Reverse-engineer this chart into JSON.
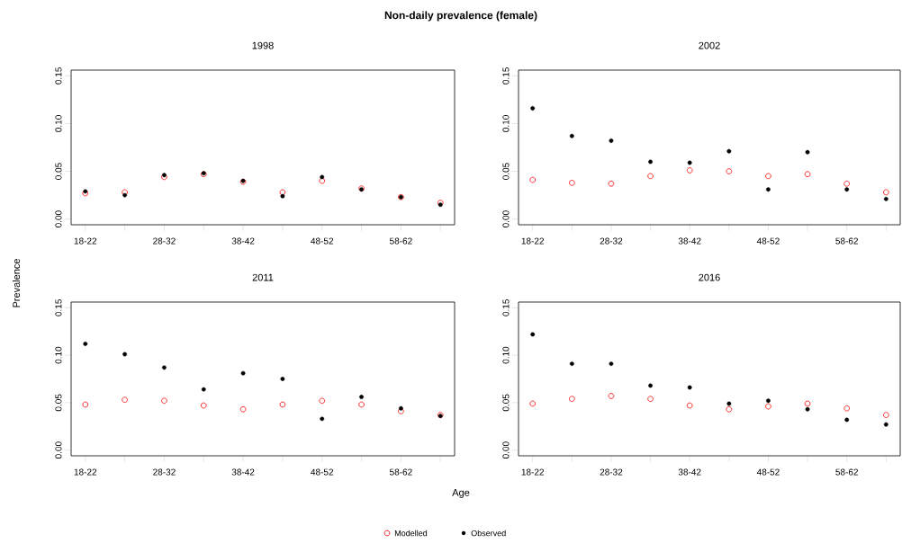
{
  "chart_data": [
    {
      "type": "scatter",
      "title": "1998",
      "ylabel": "Prevalence",
      "legend": "bottom",
      "annotations": [
        "Non-daily prevalence (female)"
      ],
      "categories": [
        "18-22",
        null,
        "28-32",
        null,
        "38-42",
        null,
        "48-52",
        null,
        "58-62",
        null
      ],
      "ylim": [
        -0.006,
        0.156
      ],
      "yticks": [
        {
          "value": 0,
          "label": "0.00"
        },
        {
          "value": 0.05,
          "label": "0.05"
        },
        {
          "value": 0.1,
          "label": "0.10"
        },
        {
          "value": 0.15,
          "label": "0.15"
        }
      ],
      "marker": "circle",
      "series": [
        {
          "name": "Modelled",
          "color": "#ff0000",
          "values": [
            0.027,
            0.028,
            0.044,
            0.047,
            0.039,
            0.028,
            0.04,
            0.032,
            0.023,
            0.017
          ]
        },
        {
          "name": "Observed",
          "color": "#000000",
          "values": [
            0.029,
            0.025,
            0.046,
            0.048,
            0.04,
            0.024,
            0.044,
            0.031,
            0.023,
            0.015
          ]
        }
      ]
    },
    {
      "type": "scatter",
      "title": "2002",
      "categories": [
        "18-22",
        null,
        "28-32",
        null,
        "38-42",
        null,
        "48-52",
        null,
        "58-62",
        null
      ],
      "ylim": [
        -0.006,
        0.156
      ],
      "yticks": [
        {
          "value": 0,
          "label": "0.00"
        },
        {
          "value": 0.05,
          "label": "0.05"
        },
        {
          "value": 0.1,
          "label": "0.10"
        },
        {
          "value": 0.15,
          "label": "0.15"
        }
      ],
      "marker": "circle",
      "series": [
        {
          "color": "#ff0000",
          "values": [
            0.041,
            0.038,
            0.037,
            0.045,
            0.051,
            0.05,
            0.045,
            0.047,
            0.037,
            0.028
          ]
        },
        {
          "color": "#000000",
          "values": [
            0.116,
            0.087,
            0.082,
            0.06,
            0.059,
            0.071,
            0.031,
            0.07,
            0.031,
            0.021
          ]
        }
      ]
    },
    {
      "type": "scatter",
      "title": "2011",
      "xlabel": "Age",
      "categories": [
        "18-22",
        null,
        "28-32",
        null,
        "38-42",
        null,
        "48-52",
        null,
        "58-62",
        null
      ],
      "ylim": [
        -0.006,
        0.156
      ],
      "yticks": [
        {
          "value": 0,
          "label": "0.00"
        },
        {
          "value": 0.05,
          "label": "0.05"
        },
        {
          "value": 0.1,
          "label": "0.10"
        },
        {
          "value": 0.15,
          "label": "0.15"
        }
      ],
      "marker": "circle",
      "series": [
        {
          "color": "#ff0000",
          "values": [
            0.048,
            0.053,
            0.052,
            0.047,
            0.043,
            0.048,
            0.052,
            0.048,
            0.041,
            0.037
          ]
        },
        {
          "color": "#000000",
          "values": [
            0.112,
            0.101,
            0.087,
            0.064,
            0.081,
            0.075,
            0.033,
            0.056,
            0.044,
            0.036
          ]
        }
      ]
    },
    {
      "type": "scatter",
      "title": "2016",
      "categories": [
        "18-22",
        null,
        "28-32",
        null,
        "38-42",
        null,
        "48-52",
        null,
        "58-62",
        null
      ],
      "ylim": [
        -0.006,
        0.156
      ],
      "yticks": [
        {
          "value": 0,
          "label": "0.00"
        },
        {
          "value": 0.05,
          "label": "0.05"
        },
        {
          "value": 0.1,
          "label": "0.10"
        },
        {
          "value": 0.15,
          "label": "0.15"
        }
      ],
      "marker": "circle",
      "series": [
        {
          "color": "#ff0000",
          "values": [
            0.049,
            0.054,
            0.057,
            0.054,
            0.047,
            0.043,
            0.046,
            0.049,
            0.044,
            0.037
          ]
        },
        {
          "color": "#000000",
          "values": [
            0.122,
            0.091,
            0.091,
            0.068,
            0.066,
            0.049,
            0.052,
            0.043,
            0.032,
            0.027
          ]
        }
      ]
    }
  ]
}
